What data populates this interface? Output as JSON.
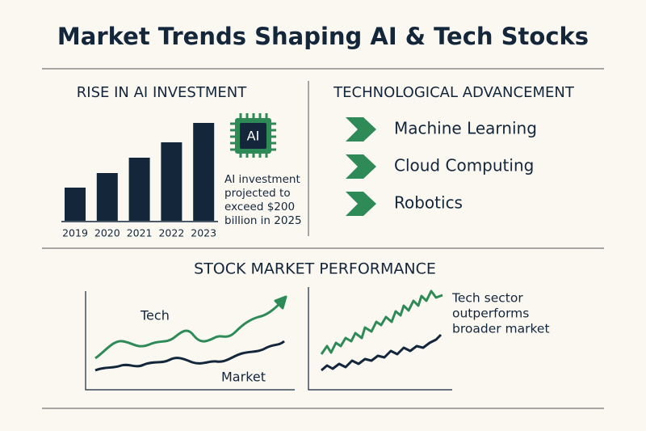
{
  "title": "Market Trends Shaping AI & Tech Stocks",
  "investment": {
    "heading": "RISE IN AI INVESTMENT",
    "chart": {
      "type": "bar",
      "categories": [
        "2019",
        "2020",
        "2021",
        "2022",
        "2023"
      ],
      "values": [
        41,
        59,
        78,
        97,
        121
      ],
      "color": "#13263a"
    },
    "icon_label": "AI",
    "note": [
      "AI investment",
      "projected to",
      "exceed $200",
      "billion in 2025"
    ]
  },
  "technology": {
    "heading": "TECHNOLOGICAL ADVANCEMENT",
    "items": [
      "Machine Learning",
      "Cloud Computing",
      "Robotics"
    ]
  },
  "performance": {
    "heading": "STOCK MARKET PERFORMANCE",
    "tech_label": "Tech",
    "market_label": "Market",
    "note": [
      "Tech sector",
      "outperforms",
      "broader market"
    ]
  }
}
